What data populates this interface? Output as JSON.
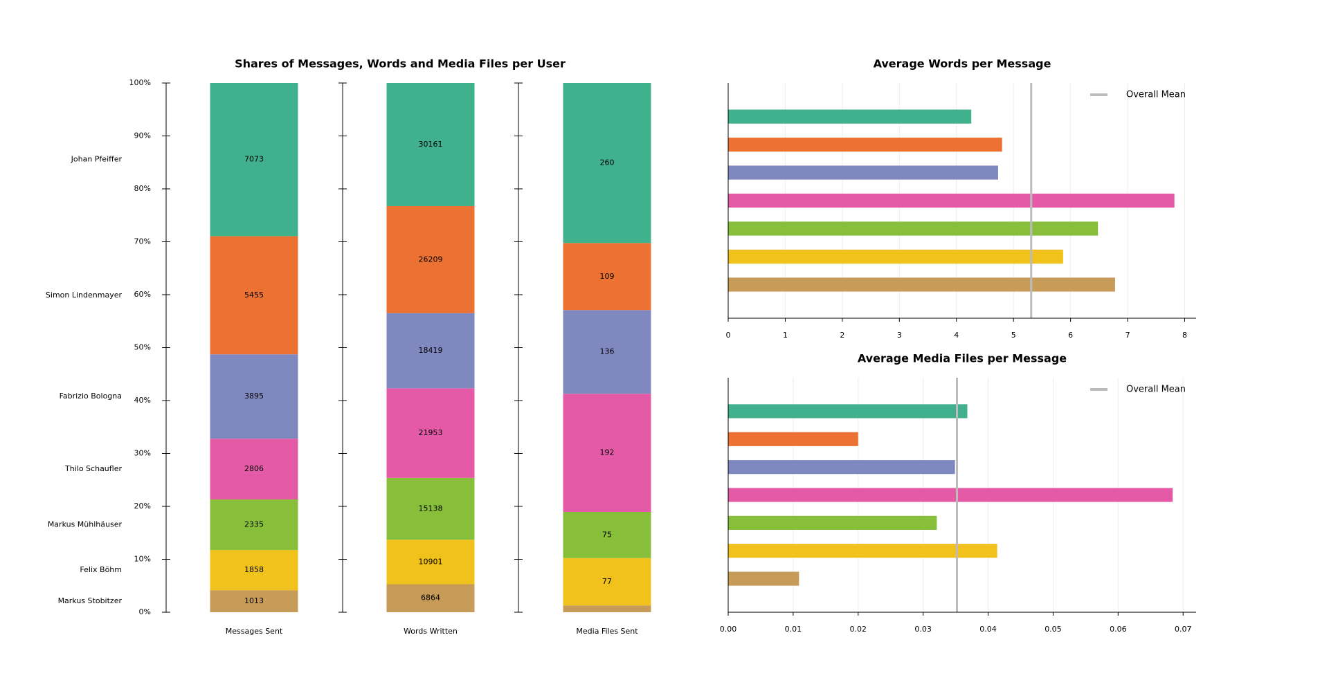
{
  "chart_data": [
    {
      "type": "stacked_percent_bar",
      "title": "Shares of Messages, Words and Media Files per User",
      "categories": [
        "Messages Sent",
        "Words Written",
        "Media Files Sent"
      ],
      "series": [
        {
          "name": "Markus Stobitzer",
          "color": "#c69c58",
          "values": [
            1013,
            6864,
            11
          ]
        },
        {
          "name": "Felix Böhm",
          "color": "#f1c21b",
          "values": [
            1858,
            10901,
            77
          ]
        },
        {
          "name": "Markus Mühlhäuser",
          "color": "#87bf3b",
          "values": [
            2335,
            15138,
            75
          ]
        },
        {
          "name": "Thilo Schaufler",
          "color": "#e55aa7",
          "values": [
            2806,
            21953,
            192
          ]
        },
        {
          "name": "Fabrizio Bologna",
          "color": "#8088c0",
          "values": [
            3895,
            18419,
            136
          ]
        },
        {
          "name": "Simon Lindenmayer",
          "color": "#ec7233",
          "values": [
            5455,
            26209,
            109
          ]
        },
        {
          "name": "Johan Pfeiffer",
          "color": "#41b08d",
          "values": [
            7073,
            30161,
            260
          ]
        }
      ],
      "ylim": [
        0,
        100
      ],
      "yticks": [
        {
          "value": 0,
          "label": "0%"
        },
        {
          "value": 10,
          "label": "10%"
        },
        {
          "value": 20,
          "label": "20%"
        },
        {
          "value": 30,
          "label": "30%"
        },
        {
          "value": 40,
          "label": "40%"
        },
        {
          "value": 50,
          "label": "50%"
        },
        {
          "value": 60,
          "label": "60%"
        },
        {
          "value": 70,
          "label": "70%"
        },
        {
          "value": 80,
          "label": "80%"
        },
        {
          "value": 90,
          "label": "90%"
        },
        {
          "value": 100,
          "label": "100%"
        }
      ]
    },
    {
      "type": "hbar",
      "title": "Average Words per Message",
      "values": [
        4.26,
        4.8,
        4.73,
        7.82,
        6.48,
        5.87,
        6.78
      ],
      "colors": [
        "#41b08d",
        "#ec7233",
        "#8088c0",
        "#e55aa7",
        "#87bf3b",
        "#f1c21b",
        "#c69c58"
      ],
      "mean": 5.31,
      "mean_label": "Overall Mean",
      "mean_color": "#bbbbbb",
      "xlim": [
        0,
        8.2
      ],
      "xticks": [
        0,
        1,
        2,
        3,
        4,
        5,
        6,
        7,
        8
      ],
      "grid": true,
      "legend": "upper right"
    },
    {
      "type": "hbar",
      "title": "Average Media Files per Message",
      "values": [
        0.0368,
        0.02,
        0.0349,
        0.0684,
        0.0321,
        0.0414,
        0.0109
      ],
      "colors": [
        "#41b08d",
        "#ec7233",
        "#8088c0",
        "#e55aa7",
        "#87bf3b",
        "#f1c21b",
        "#c69c58"
      ],
      "mean": 0.0352,
      "mean_label": "Overall Mean",
      "mean_color": "#bbbbbb",
      "xlim": [
        0,
        0.072
      ],
      "xticks": [
        {
          "value": 0,
          "label": "0.00"
        },
        0.01,
        0.02,
        0.03,
        0.04,
        0.05,
        0.06,
        0.07
      ],
      "grid": true,
      "legend": "upper right"
    }
  ]
}
